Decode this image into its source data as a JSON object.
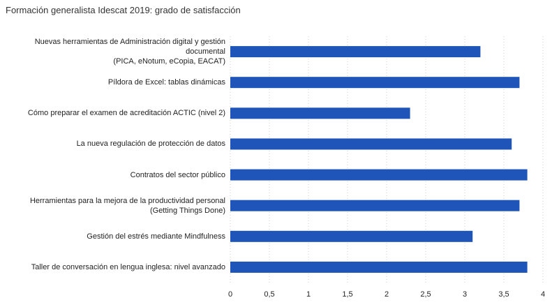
{
  "chart_data": {
    "type": "bar",
    "orientation": "horizontal",
    "title": "Formación generalista Idescat 2019: grado de satisfacción",
    "categories": [
      "Nuevas herramientas de Administración digital y gestión documental\n(PICA, eNotum, eCopia, EACAT)",
      "Píldora de Excel: tablas dinámicas",
      "Cómo preparar el examen de acreditación ACTIC (nivel 2)",
      "La nueva regulación de protección de datos",
      "Contratos del sector público",
      "Herramientas para la mejora de la productividad personal\n(Getting Things Done)",
      "Gestión del estrés mediante Mindfulness",
      "Taller de conversación en lengua inglesa: nivel avanzado"
    ],
    "values": [
      3.2,
      3.7,
      2.3,
      3.6,
      3.8,
      3.7,
      3.1,
      3.8
    ],
    "color": "#1f55b8",
    "xlim": [
      0,
      4
    ],
    "xticks": [
      0,
      {
        "value": 0.5,
        "label": "0,5"
      },
      1,
      {
        "value": 1.5,
        "label": "1,5"
      },
      2,
      {
        "value": 2.5,
        "label": "2,5"
      },
      3,
      {
        "value": 3.5,
        "label": "3,5"
      },
      4
    ],
    "grid": true
  }
}
